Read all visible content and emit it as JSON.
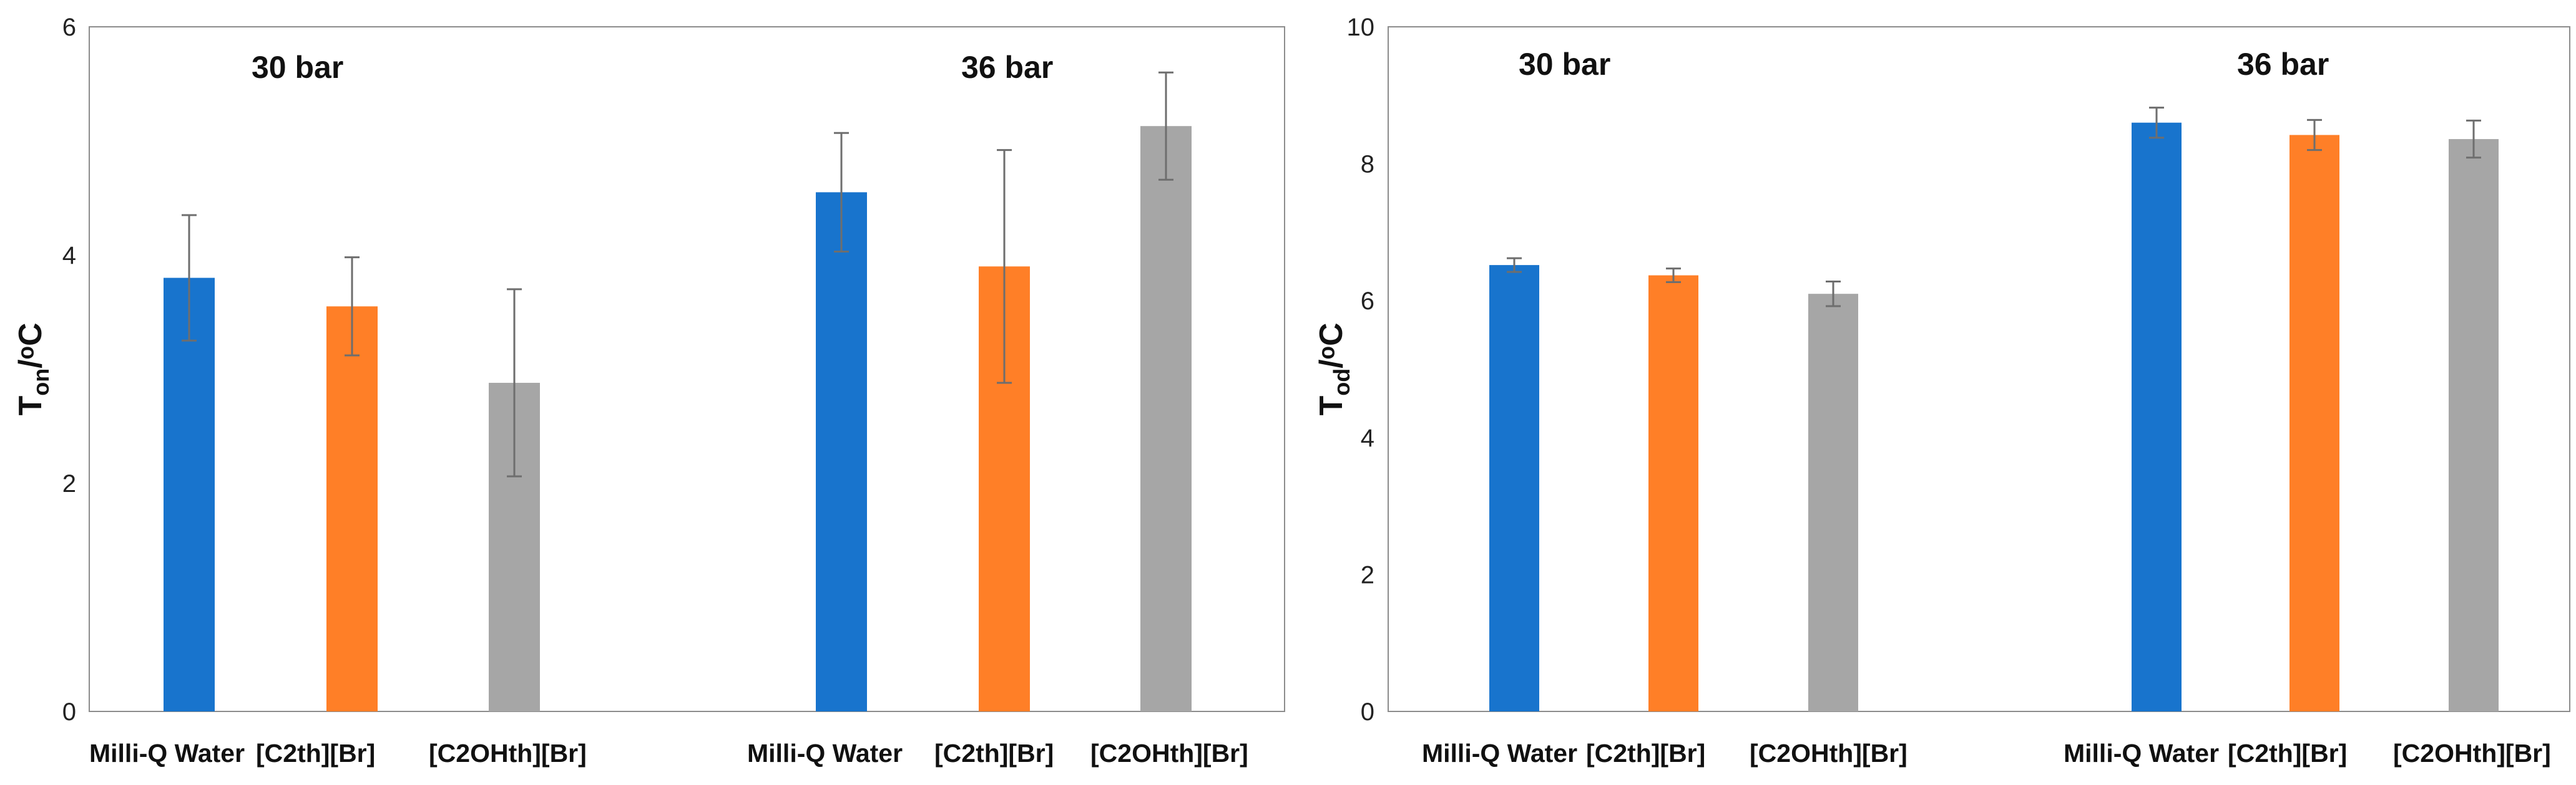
{
  "chart_data": [
    {
      "type": "bar",
      "ylabel_base": "T",
      "ylabel_sub": "on",
      "ylabel_unit": "/ᵒC",
      "ylim": [
        0,
        6
      ],
      "yticks": [
        "0",
        "2",
        "4",
        "6"
      ],
      "group_labels": [
        "30 bar",
        "36 bar"
      ],
      "categories": [
        "Milli-Q Water",
        "[C2th][Br]",
        "[C2OHth][Br]"
      ],
      "colors": [
        "#1874CD",
        "#FF7F27",
        "#A6A6A6"
      ],
      "groups": [
        {
          "name": "30 bar",
          "values": [
            3.8,
            3.55,
            2.88
          ],
          "errors": [
            0.55,
            0.43,
            0.82
          ]
        },
        {
          "name": "36 bar",
          "values": [
            4.55,
            3.9,
            5.13
          ],
          "errors": [
            0.52,
            1.02,
            0.47
          ]
        }
      ]
    },
    {
      "type": "bar",
      "ylabel_base": "T",
      "ylabel_sub": "od",
      "ylabel_unit": "/ᵒC",
      "ylim": [
        0,
        10
      ],
      "yticks": [
        "0",
        "2",
        "4",
        "6",
        "8",
        "10"
      ],
      "group_labels": [
        "30 bar",
        "36 bar"
      ],
      "categories": [
        "Milli-Q Water",
        "[C2th][Br]",
        "[C2OHth][Br]"
      ],
      "colors": [
        "#1874CD",
        "#FF7F27",
        "#A6A6A6"
      ],
      "groups": [
        {
          "name": "30 bar",
          "values": [
            6.52,
            6.37,
            6.1
          ],
          "errors": [
            0.1,
            0.1,
            0.18
          ]
        },
        {
          "name": "36 bar",
          "values": [
            8.6,
            8.42,
            8.36
          ],
          "errors": [
            0.22,
            0.22,
            0.27
          ]
        }
      ]
    }
  ]
}
